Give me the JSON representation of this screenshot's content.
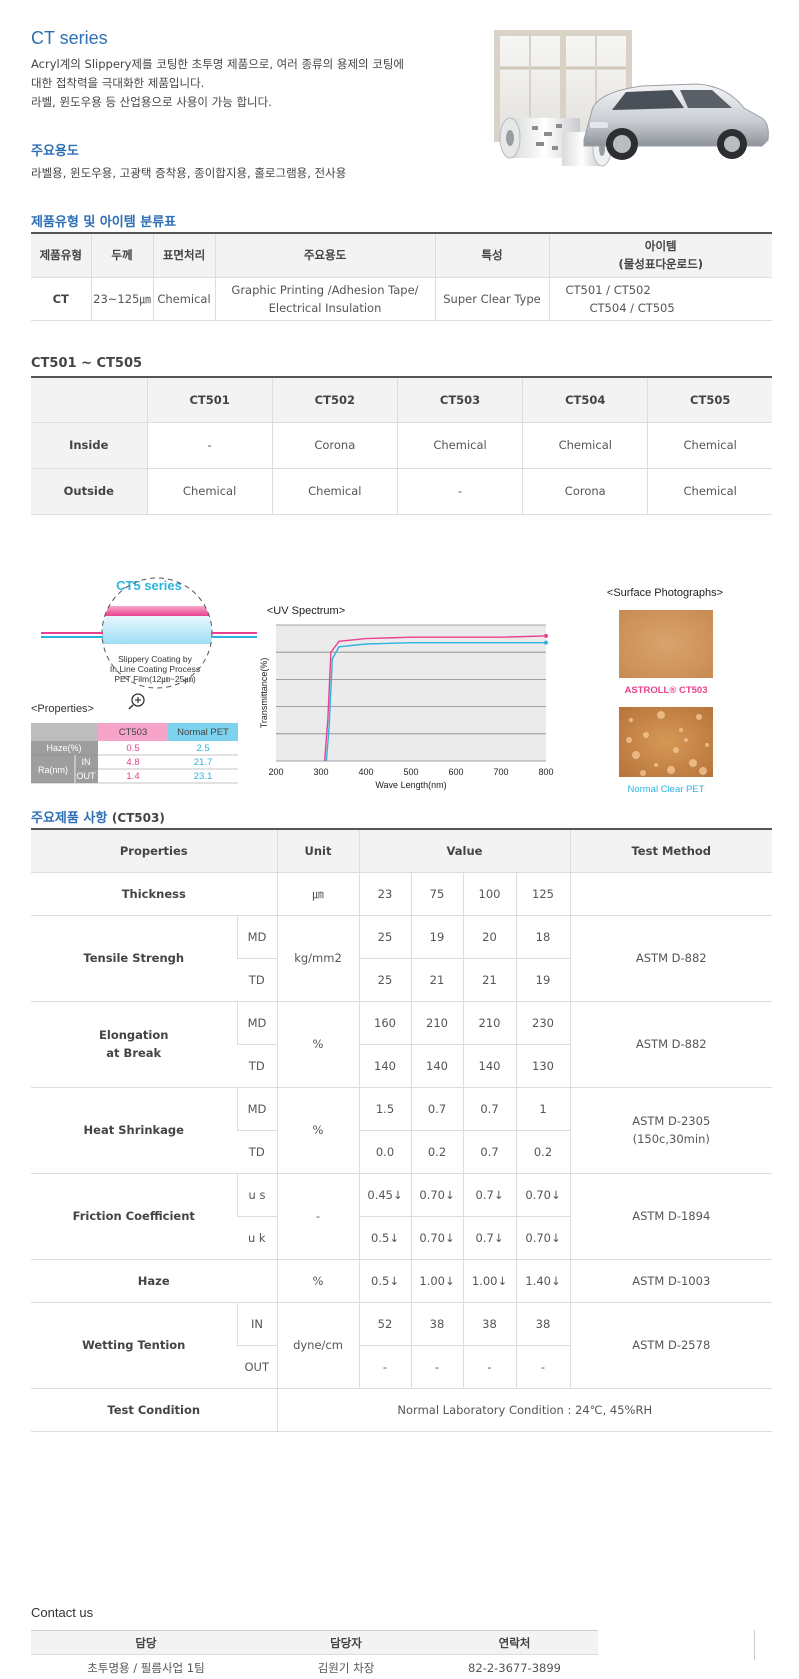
{
  "intro": {
    "title": "CT series",
    "desc1": "Acryl계의 Slippery제를 코팅한 초투명 제품으로, 여러 종류의 용제의 코팅에",
    "desc2": "대한 접착력을 극대화한 제품입니다.",
    "desc3": "라벨, 윈도우용 등 산업용으로 사용이 가능 합니다.",
    "uses_title": "주요용도",
    "uses": "라벨용, 윈도우용, 고광택 증착용, 종이합지용, 홀로그램용, 전사용"
  },
  "classification": {
    "title": "제품유형 및 아이템 분류표",
    "headers": [
      "제품유형",
      "두께",
      "표면처리",
      "주요용도",
      "특성",
      "아이템",
      "(물성표다운로드)"
    ],
    "row": {
      "type": "CT",
      "thickness": "23~125㎛",
      "surface": "Chemical",
      "use1": "Graphic Printing /Adhesion Tape/",
      "use2": "Electrical Insulation",
      "feature": "Super Clear Type",
      "items1": "CT501 / CT502",
      "items2": "CT504 / CT505"
    }
  },
  "grades": {
    "title": "CT501 ~ CT505",
    "headers": [
      "",
      "CT501",
      "CT502",
      "CT503",
      "CT504",
      "CT505"
    ],
    "rows": [
      {
        "label": "Inside",
        "values": [
          "-",
          "Corona",
          "Chemical",
          "Chemical",
          "Chemical"
        ]
      },
      {
        "label": "Outside",
        "values": [
          "Chemical",
          "Chemical",
          "-",
          "Corona",
          "Chemical"
        ]
      }
    ]
  },
  "figure": {
    "ct5_title": "CT5 series",
    "callout": [
      "Slippery Coating by",
      "In Line Coating Process",
      "PET Film(12㎛~25㎛)"
    ],
    "props_title": "<Properties>",
    "props_headers": [
      "CT503",
      "Normal PET"
    ],
    "props_rows": [
      {
        "label": "Haze(%)",
        "sub": "",
        "a": "0.5",
        "b": "2.5"
      },
      {
        "label": "Ra(nm)",
        "sub": "IN",
        "a": "4.8",
        "b": "21.7"
      },
      {
        "label": "",
        "sub": "OUT",
        "a": "1.4",
        "b": "23.1"
      }
    ],
    "uv_title": "<UV Spectrum>",
    "uv_ylabel": "Transmittance(%)",
    "uv_xlabel": "Wave Length(nm)",
    "surface_title": "<Surface Photographs>",
    "photo1_caption": "ASTROLL® CT503",
    "photo2_caption": "Normal Clear PET",
    "colors": {
      "pink": "#e9418d",
      "cyan": "#2cb4e0",
      "blue": "#2e6fb5"
    }
  },
  "chart_data": {
    "type": "line",
    "title": "<UV Spectrum>",
    "xlabel": "Wave Length(nm)",
    "ylabel": "Transmittance(%)",
    "xlim": [
      200,
      800
    ],
    "x_ticks": [
      "200",
      "300",
      "400",
      "500",
      "600",
      "700",
      "800"
    ],
    "ylim": [
      0,
      100
    ],
    "grid": true,
    "series": [
      {
        "color": "#e9418d",
        "x": [
          308,
          315,
          322,
          340,
          400,
          500,
          600,
          700,
          800
        ],
        "values": [
          0,
          30,
          80,
          88,
          90,
          91,
          91,
          91,
          92
        ]
      },
      {
        "color": "#2cb4e0",
        "x": [
          312,
          318,
          325,
          340,
          400,
          500,
          600,
          700,
          800
        ],
        "values": [
          0,
          25,
          75,
          84,
          86,
          87,
          87,
          87,
          87
        ]
      }
    ]
  },
  "specs": {
    "title": "주요제품 사항",
    "title_suffix": "(CT503)",
    "headers": {
      "properties": "Properties",
      "unit": "Unit",
      "value": "Value",
      "method": "Test Method"
    },
    "thickness": {
      "label": "Thickness",
      "unit": "㎛",
      "values": [
        "23",
        "75",
        "100",
        "125"
      ]
    },
    "tensile": {
      "label": "Tensile Strengh",
      "unit": "kg/mm2",
      "method": "ASTM D-882",
      "md": {
        "sub": "MD",
        "values": [
          "25",
          "19",
          "20",
          "18"
        ]
      },
      "td": {
        "sub": "TD",
        "values": [
          "25",
          "21",
          "21",
          "19"
        ]
      }
    },
    "elongation": {
      "label1": "Elongation",
      "label2": "at Break",
      "unit": "%",
      "method": "ASTM D-882",
      "md": {
        "sub": "MD",
        "values": [
          "160",
          "210",
          "210",
          "230"
        ]
      },
      "td": {
        "sub": "TD",
        "values": [
          "140",
          "140",
          "140",
          "130"
        ]
      }
    },
    "shrinkage": {
      "label": "Heat Shrinkage",
      "unit": "%",
      "method1": "ASTM D-2305",
      "method2": "(150c,30min)",
      "md": {
        "sub": "MD",
        "values": [
          "1.5",
          "0.7",
          "0.7",
          "1"
        ]
      },
      "td": {
        "sub": "TD",
        "values": [
          "0.0",
          "0.2",
          "0.7",
          "0.2"
        ]
      }
    },
    "friction": {
      "label": "Friction Coefficient",
      "unit": "-",
      "method": "ASTM D-1894",
      "us": {
        "sub": "u s",
        "values": [
          "0.45↓",
          "0.70↓",
          "0.7↓",
          "0.70↓"
        ]
      },
      "uk": {
        "sub": "u k",
        "values": [
          "0.5↓",
          "0.70↓",
          "0.7↓",
          "0.70↓"
        ]
      }
    },
    "haze": {
      "label": "Haze",
      "unit": "%",
      "values": [
        "0.5↓",
        "1.00↓",
        "1.00↓",
        "1.40↓"
      ],
      "method": "ASTM D-1003"
    },
    "wetting": {
      "label": "Wetting Tention",
      "unit": "dyne/cm",
      "method": "ASTM D-2578",
      "in": {
        "sub": "IN",
        "values": [
          "52",
          "38",
          "38",
          "38"
        ]
      },
      "out": {
        "sub": "OUT",
        "values": [
          "-",
          "-",
          "-",
          "-"
        ]
      }
    },
    "condition": {
      "label": "Test Condition",
      "value": "Normal Laboratory Condition : 24℃, 45%RH"
    }
  },
  "contact": {
    "title": "Contact us",
    "headers": [
      "담당",
      "담당자",
      "연락처"
    ],
    "row": [
      "초투명용 / 필름사업 1팀",
      "김원기 차장",
      "82-2-3677-3899"
    ]
  }
}
